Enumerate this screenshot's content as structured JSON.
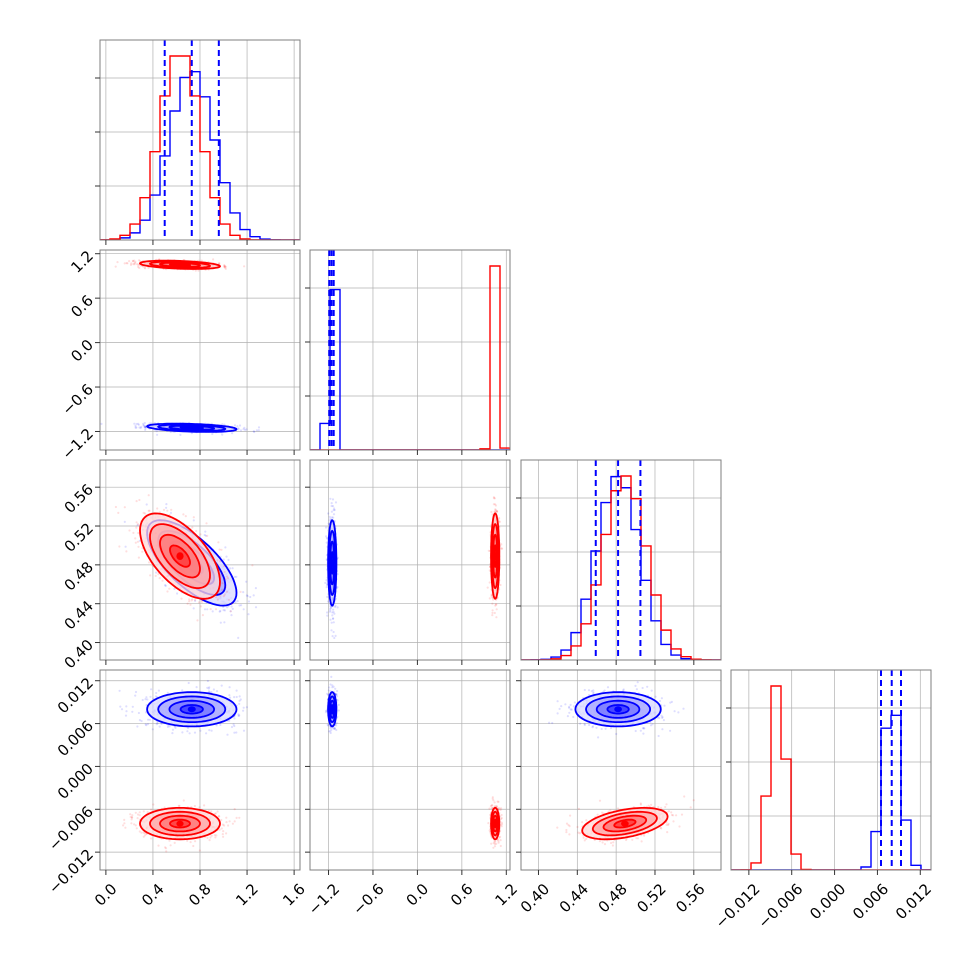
{
  "chart_data": {
    "type": "corner",
    "series": [
      {
        "name": "",
        "color": "#0000ff",
        "mean": [
          0.73,
          -1.15,
          0.482,
          0.008
        ],
        "sd": [
          0.19,
          0.028,
          0.022,
          0.0012
        ],
        "corr": {
          "0-1": -0.35,
          "0-2": -0.7,
          "2-3": 0.0
        }
      },
      {
        "name": "",
        "color": "#ff0000",
        "mean": [
          0.63,
          1.05,
          0.489,
          -0.008
        ],
        "sd": [
          0.17,
          0.028,
          0.022,
          0.0011
        ],
        "corr": {
          "0-1": -0.35,
          "0-2": -0.6,
          "2-3": 0.45
        }
      }
    ],
    "quantile_lines": {
      "color": "#0000ff",
      "values": [
        [
          0.5,
          0.73,
          0.96
        ],
        [
          -1.19,
          -1.16,
          -1.13
        ],
        [
          0.459,
          0.482,
          0.505
        ],
        [
          0.0065,
          0.008,
          0.0093
        ]
      ]
    },
    "parameters": [
      {
        "range": [
          -0.05,
          1.65
        ],
        "ticks": [
          0.0,
          0.4,
          0.8,
          1.2,
          1.6
        ],
        "tick_labels": [
          "0.0",
          "0.4",
          "0.8",
          "1.2",
          "1.6"
        ]
      },
      {
        "range": [
          -1.45,
          1.25
        ],
        "ticks": [
          -1.2,
          -0.6,
          0.0,
          0.6,
          1.2
        ],
        "tick_labels": [
          "−1.2",
          "−0.6",
          "0.0",
          "0.6",
          "1.2"
        ]
      },
      {
        "range": [
          0.382,
          0.588
        ],
        "ticks": [
          0.4,
          0.44,
          0.48,
          0.52,
          0.56
        ],
        "tick_labels": [
          "0.40",
          "0.44",
          "0.48",
          "0.52",
          "0.56"
        ]
      },
      {
        "range": [
          -0.0145,
          0.0135
        ],
        "ticks": [
          -0.012,
          -0.006,
          0.0,
          0.006,
          0.012
        ],
        "tick_labels": [
          "−0.012",
          "−0.006",
          "0.000",
          "0.006",
          "0.012"
        ]
      }
    ],
    "grid": true,
    "xlabel": "",
    "ylabel": "",
    "title": ""
  }
}
